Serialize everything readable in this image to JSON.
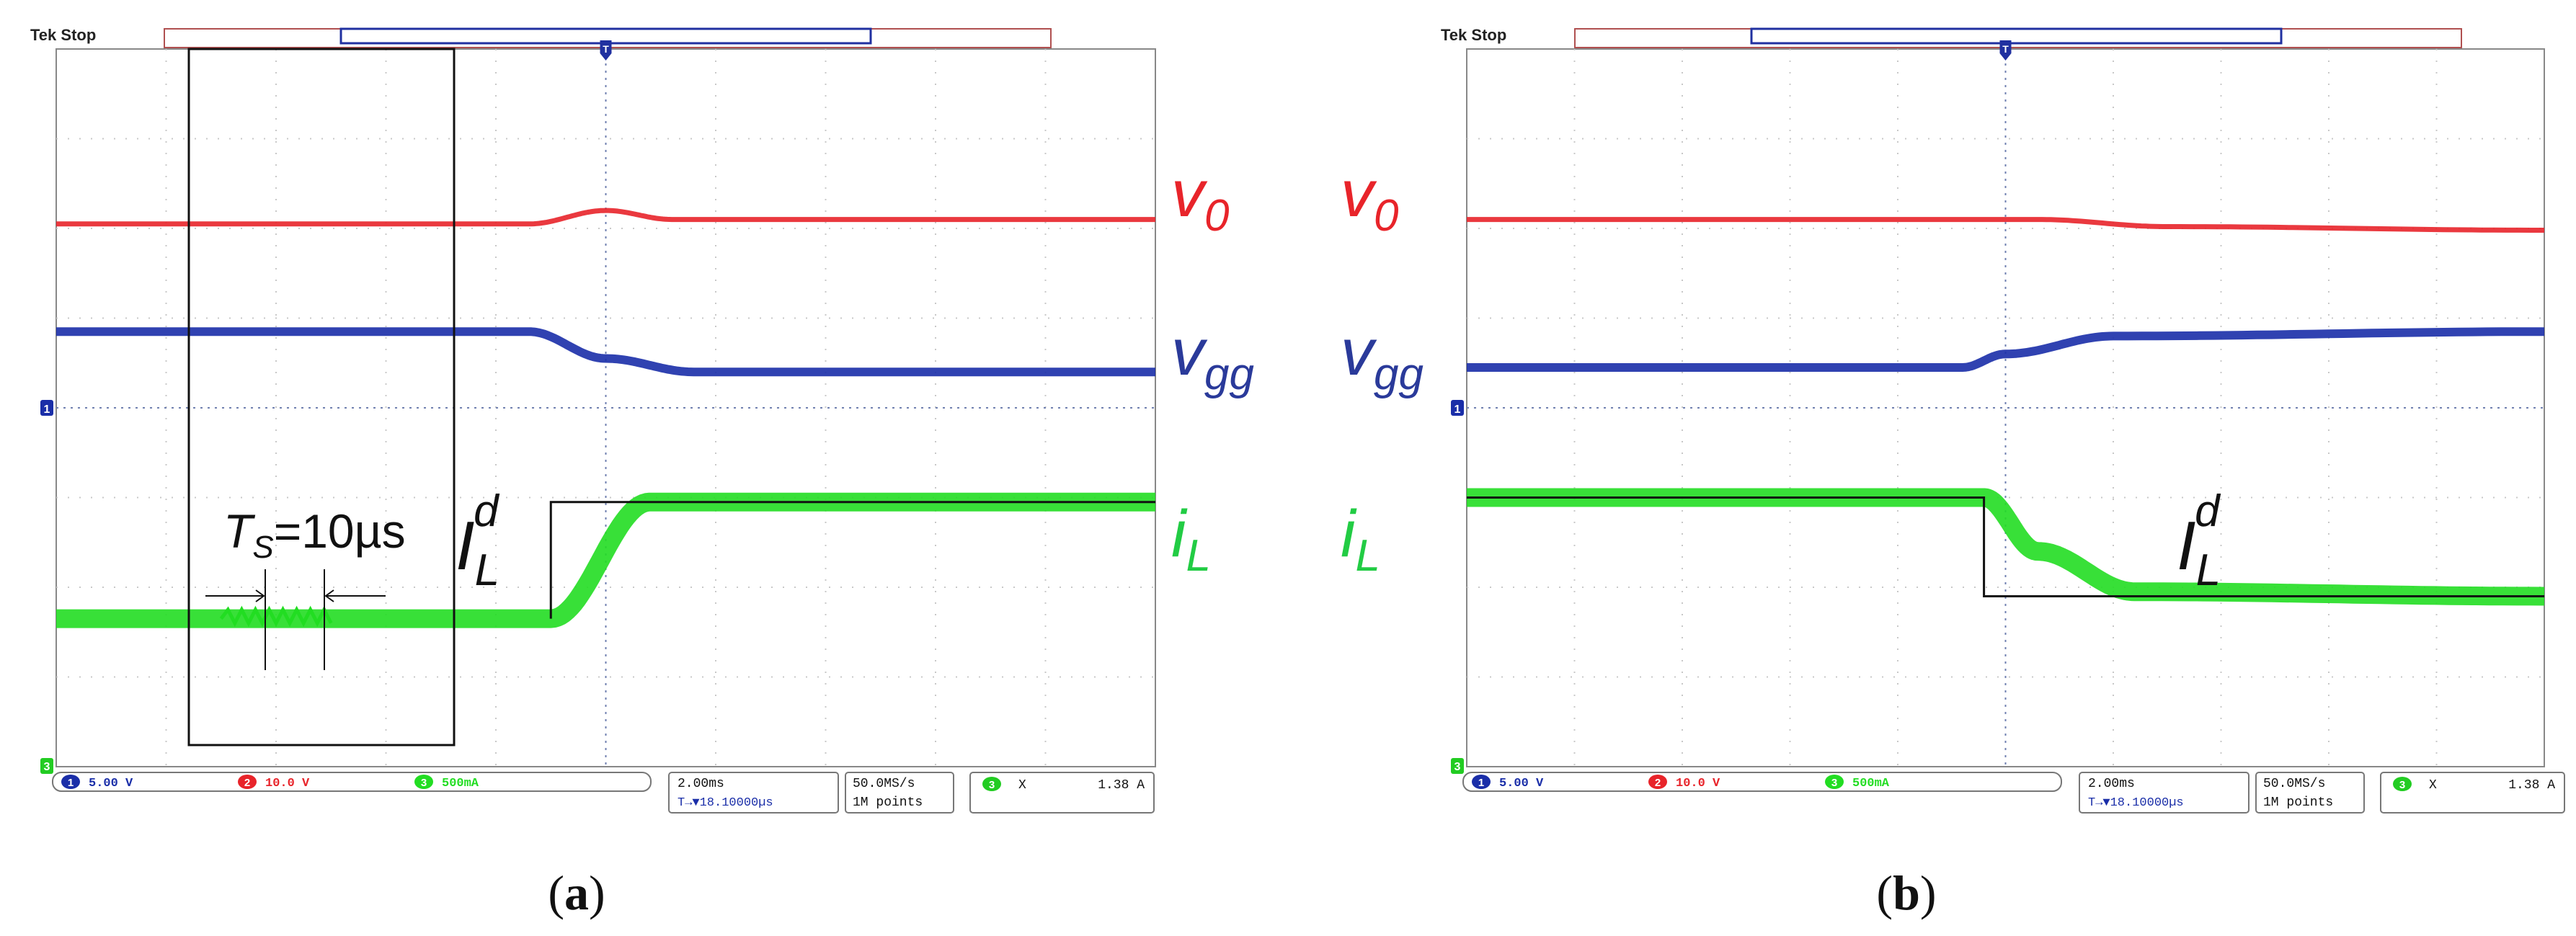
{
  "panels": [
    {
      "id": "a",
      "caption_open": "(",
      "caption_letter": "a",
      "caption_close": ")",
      "header": "Tek Stop",
      "trigger_marker": "T",
      "ch1_marker": "1",
      "ch3_marker": "3",
      "channels": [
        {
          "index": "1",
          "scale": "5.00 V",
          "color": "#1a2ea8"
        },
        {
          "index": "2",
          "scale": "10.0 V",
          "color": "#e8242a"
        },
        {
          "index": "3",
          "scale": "500mA",
          "color": "#22dd22"
        }
      ],
      "timebase": "2.00ms",
      "trigger_position": "T→▼18.10000µs",
      "sample_rate": "50.0MS/s",
      "record_length": "1M points",
      "measure_channel": "3",
      "measure_label": "X",
      "measure_value": "1.38 A",
      "annotations": {
        "ts_label": "T",
        "ts_sub": "S",
        "ts_value": "=10µs",
        "il_step_I": "I",
        "il_step_sub": "L",
        "il_step_sup": "d"
      },
      "signal_labels": {
        "v0_base": "v",
        "v0_sub": "0",
        "vgg_base": "v",
        "vgg_sub": "gg",
        "il_base": "i",
        "il_sub": "L"
      }
    },
    {
      "id": "b",
      "caption_open": "(",
      "caption_letter": "b",
      "caption_close": ")",
      "header": "Tek Stop",
      "trigger_marker": "T",
      "ch1_marker": "1",
      "ch3_marker": "3",
      "channels": [
        {
          "index": "1",
          "scale": "5.00 V",
          "color": "#1a2ea8"
        },
        {
          "index": "2",
          "scale": "10.0 V",
          "color": "#e8242a"
        },
        {
          "index": "3",
          "scale": "500mA",
          "color": "#22dd22"
        }
      ],
      "timebase": "2.00ms",
      "trigger_position": "T→▼18.10000µs",
      "sample_rate": "50.0MS/s",
      "record_length": "1M points",
      "measure_channel": "3",
      "measure_label": "X",
      "measure_value": "1.38 A",
      "annotations": {
        "il_step_I": "I",
        "il_step_sub": "L",
        "il_step_sup": "d"
      },
      "signal_labels": {
        "v0_base": "v",
        "v0_sub": "0",
        "vgg_base": "v",
        "vgg_sub": "gg",
        "il_base": "i",
        "il_sub": "L"
      }
    }
  ],
  "chart_data": [
    {
      "type": "line",
      "panel": "a",
      "x_divisions": 10,
      "y_divisions": 8,
      "timebase_per_div": "2.00ms",
      "trigger_div": 5,
      "grid": true,
      "series": [
        {
          "name": "v0",
          "color": "#e8242a",
          "x": [
            0,
            4.3,
            5.0,
            5.6,
            10
          ],
          "y": [
            6.05,
            6.05,
            6.2,
            6.1,
            6.1
          ]
        },
        {
          "name": "vgg",
          "color": "#1a2ea8",
          "x": [
            0,
            4.3,
            5.0,
            5.8,
            10
          ],
          "y": [
            4.85,
            4.85,
            4.55,
            4.4,
            4.4
          ]
        },
        {
          "name": "iL",
          "color": "#22dd22",
          "x": [
            0,
            4.5,
            5.4,
            10
          ],
          "y": [
            1.65,
            1.65,
            2.95,
            2.95
          ]
        }
      ]
    },
    {
      "type": "line",
      "panel": "b",
      "x_divisions": 10,
      "y_divisions": 8,
      "timebase_per_div": "2.00ms",
      "trigger_div": 5,
      "grid": true,
      "series": [
        {
          "name": "v0",
          "color": "#e8242a",
          "x": [
            0,
            4.8,
            5.3,
            6.5,
            10
          ],
          "y": [
            6.1,
            6.1,
            6.1,
            6.02,
            5.98
          ]
        },
        {
          "name": "vgg",
          "color": "#1a2ea8",
          "x": [
            0,
            4.6,
            5.0,
            6.0,
            10
          ],
          "y": [
            4.45,
            4.45,
            4.6,
            4.8,
            4.85
          ]
        },
        {
          "name": "iL",
          "color": "#22dd22",
          "x": [
            0,
            4.8,
            5.3,
            6.2,
            10
          ],
          "y": [
            3.0,
            3.0,
            2.4,
            1.95,
            1.9
          ]
        }
      ]
    }
  ]
}
